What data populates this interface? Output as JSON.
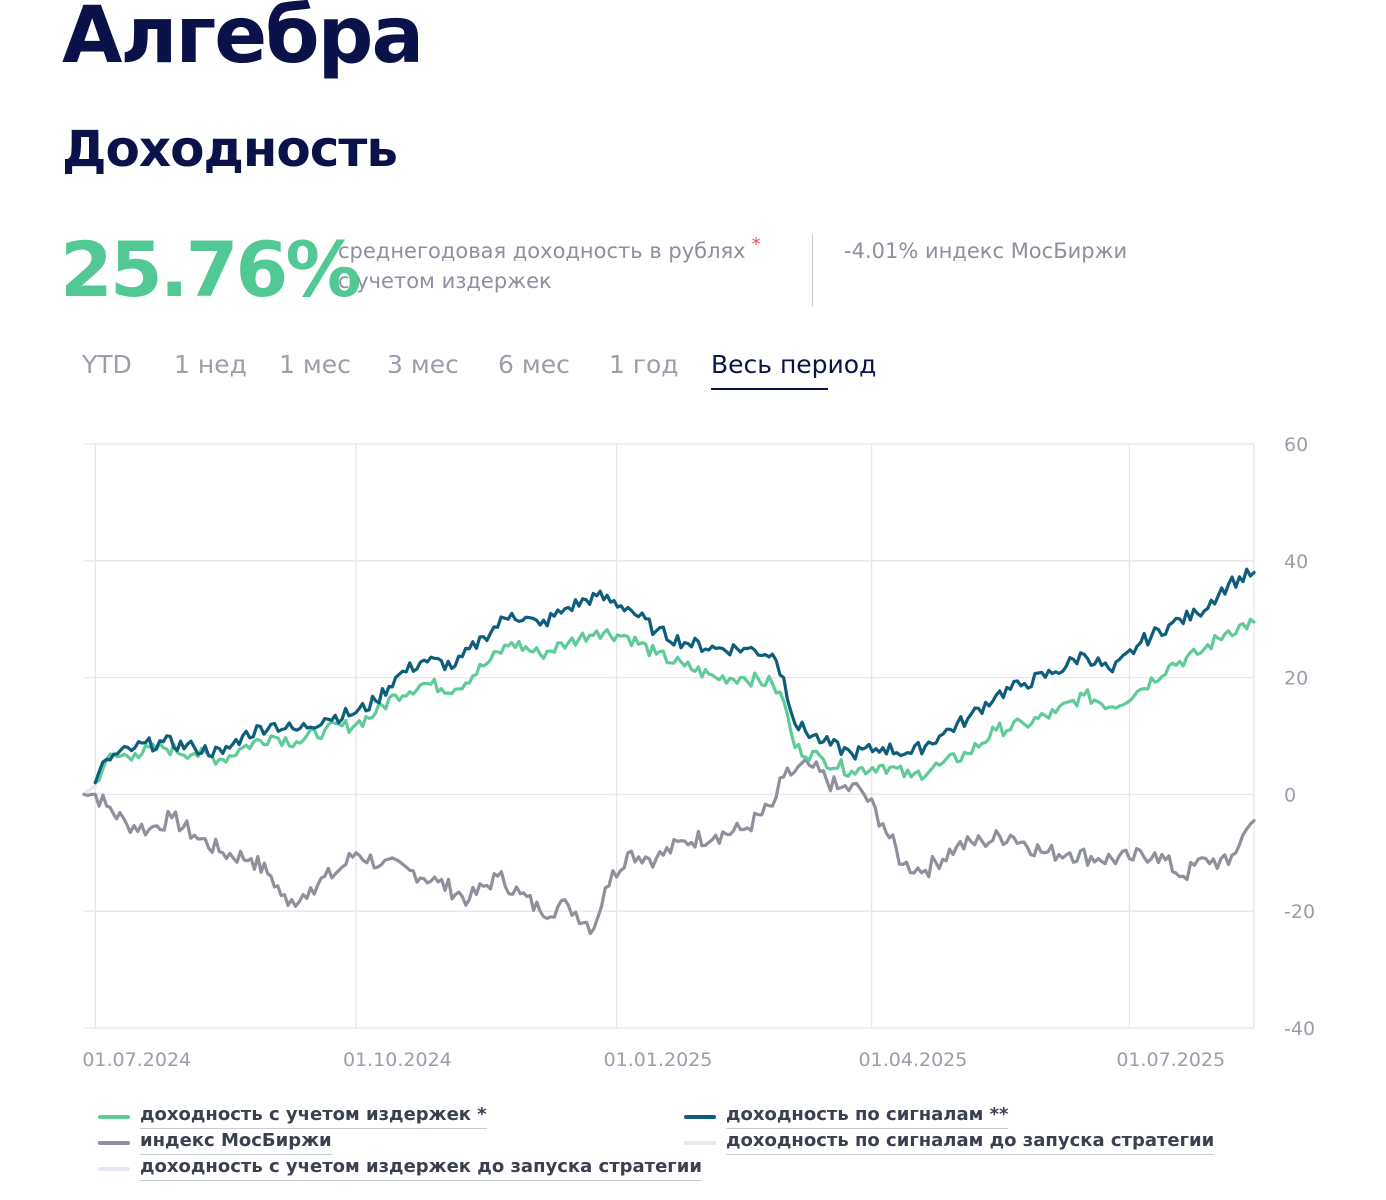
{
  "header": {
    "title": "Алгебра",
    "section_title": "Доходность"
  },
  "summary": {
    "value": "25.76%",
    "caption_line1": "среднегодовая доходность в рублях",
    "caption_star": "*",
    "caption_line2": "с учетом издержек",
    "index_value": "-4.01% индекс МосБиржи"
  },
  "tabs": [
    {
      "label": "YTD"
    },
    {
      "label": "1 нед"
    },
    {
      "label": "1 мес"
    },
    {
      "label": "3 мес"
    },
    {
      "label": "6 мес"
    },
    {
      "label": "1 год"
    },
    {
      "label": "Весь период"
    }
  ],
  "active_tab": "Весь период",
  "legend": [
    {
      "label": "доходность с учетом издержек *",
      "color": "#5fcb97"
    },
    {
      "label": "доходность по сигналам **",
      "color": "#0e5e7b"
    },
    {
      "label": "индекс МосБиржи",
      "color": "#8e919c"
    },
    {
      "label": "доходность по сигналам до запуска стратегии",
      "color": "#e9eaee"
    },
    {
      "label": "доходность с учетом издержек до запуска стратегии",
      "color": "#e6e7f3"
    }
  ],
  "chart_data": {
    "type": "line",
    "x_type": "date",
    "x_range": [
      "2024-06-27",
      "2025-08-14"
    ],
    "x_ticks": [
      {
        "date": "2024-07-01",
        "label": "01.07.2024"
      },
      {
        "date": "2024-10-01",
        "label": "01.10.2024"
      },
      {
        "date": "2025-01-01",
        "label": "01.01.2025"
      },
      {
        "date": "2025-04-01",
        "label": "01.04.2025"
      },
      {
        "date": "2025-07-01",
        "label": "01.07.2025"
      }
    ],
    "y_ticks": [
      60,
      40,
      20,
      0,
      -20,
      -40
    ],
    "ylim": [
      -40,
      60
    ],
    "grid": true,
    "y_axis_position": "right",
    "legend_position": "bottom",
    "series": [
      {
        "name": "доходность с учетом издержек *",
        "color": "#5fcb97",
        "points": [
          [
            "2024-07-01",
            2
          ],
          [
            "2024-07-05",
            6
          ],
          [
            "2024-07-15",
            7
          ],
          [
            "2024-07-25",
            8
          ],
          [
            "2024-08-05",
            7
          ],
          [
            "2024-08-15",
            6
          ],
          [
            "2024-08-22",
            8
          ],
          [
            "2024-09-01",
            10
          ],
          [
            "2024-09-10",
            9
          ],
          [
            "2024-09-20",
            11
          ],
          [
            "2024-10-01",
            12
          ],
          [
            "2024-10-08",
            14
          ],
          [
            "2024-10-15",
            17
          ],
          [
            "2024-10-25",
            19
          ],
          [
            "2024-11-05",
            18
          ],
          [
            "2024-11-15",
            22
          ],
          [
            "2024-11-25",
            26
          ],
          [
            "2024-12-05",
            24
          ],
          [
            "2024-12-15",
            26
          ],
          [
            "2024-12-25",
            28
          ],
          [
            "2025-01-05",
            27
          ],
          [
            "2025-01-15",
            24
          ],
          [
            "2025-01-25",
            22
          ],
          [
            "2025-02-05",
            20
          ],
          [
            "2025-02-15",
            20
          ],
          [
            "2025-02-25",
            19
          ],
          [
            "2025-03-01",
            16
          ],
          [
            "2025-03-05",
            8
          ],
          [
            "2025-03-15",
            6
          ],
          [
            "2025-03-25",
            4
          ],
          [
            "2025-04-05",
            5
          ],
          [
            "2025-04-15",
            3
          ],
          [
            "2025-04-25",
            5
          ],
          [
            "2025-05-05",
            7
          ],
          [
            "2025-05-15",
            11
          ],
          [
            "2025-05-25",
            12
          ],
          [
            "2025-06-05",
            14
          ],
          [
            "2025-06-15",
            17
          ],
          [
            "2025-06-25",
            15
          ],
          [
            "2025-07-05",
            18
          ],
          [
            "2025-07-15",
            22
          ],
          [
            "2025-07-25",
            24
          ],
          [
            "2025-08-05",
            28
          ],
          [
            "2025-08-14",
            29.5
          ]
        ]
      },
      {
        "name": "доходность по сигналам **",
        "color": "#0e5e7b",
        "points": [
          [
            "2024-07-01",
            2
          ],
          [
            "2024-07-05",
            6
          ],
          [
            "2024-07-15",
            8
          ],
          [
            "2024-07-25",
            9
          ],
          [
            "2024-08-05",
            8
          ],
          [
            "2024-08-15",
            7
          ],
          [
            "2024-08-22",
            10
          ],
          [
            "2024-09-01",
            12
          ],
          [
            "2024-09-10",
            11
          ],
          [
            "2024-09-20",
            13
          ],
          [
            "2024-10-01",
            14
          ],
          [
            "2024-10-08",
            16
          ],
          [
            "2024-10-15",
            20
          ],
          [
            "2024-10-25",
            23
          ],
          [
            "2024-11-05",
            22
          ],
          [
            "2024-11-15",
            27
          ],
          [
            "2024-11-25",
            31
          ],
          [
            "2024-12-05",
            29
          ],
          [
            "2024-12-15",
            32
          ],
          [
            "2024-12-25",
            34
          ],
          [
            "2025-01-05",
            32
          ],
          [
            "2025-01-15",
            28
          ],
          [
            "2025-01-25",
            26
          ],
          [
            "2025-02-05",
            25
          ],
          [
            "2025-02-15",
            25
          ],
          [
            "2025-02-25",
            24
          ],
          [
            "2025-03-01",
            20
          ],
          [
            "2025-03-05",
            12
          ],
          [
            "2025-03-15",
            9
          ],
          [
            "2025-03-25",
            7
          ],
          [
            "2025-04-05",
            8
          ],
          [
            "2025-04-15",
            7
          ],
          [
            "2025-04-25",
            10
          ],
          [
            "2025-05-05",
            13
          ],
          [
            "2025-05-15",
            17
          ],
          [
            "2025-05-25",
            19
          ],
          [
            "2025-06-05",
            21
          ],
          [
            "2025-06-15",
            24
          ],
          [
            "2025-06-25",
            21
          ],
          [
            "2025-07-05",
            26
          ],
          [
            "2025-07-15",
            29
          ],
          [
            "2025-07-25",
            31
          ],
          [
            "2025-08-05",
            36
          ],
          [
            "2025-08-14",
            38
          ]
        ]
      },
      {
        "name": "индекс МосБиржи",
        "color": "#8e919c",
        "points": [
          [
            "2024-06-27",
            0
          ],
          [
            "2024-07-01",
            0
          ],
          [
            "2024-07-05",
            -2
          ],
          [
            "2024-07-12",
            -5
          ],
          [
            "2024-07-20",
            -6
          ],
          [
            "2024-07-28",
            -4
          ],
          [
            "2024-08-05",
            -7
          ],
          [
            "2024-08-15",
            -10
          ],
          [
            "2024-08-25",
            -11
          ],
          [
            "2024-09-01",
            -14
          ],
          [
            "2024-09-07",
            -19
          ],
          [
            "2024-09-15",
            -16
          ],
          [
            "2024-09-25",
            -13
          ],
          [
            "2024-10-01",
            -10
          ],
          [
            "2024-10-10",
            -12
          ],
          [
            "2024-10-20",
            -13
          ],
          [
            "2024-10-30",
            -15
          ],
          [
            "2024-11-10",
            -18
          ],
          [
            "2024-11-20",
            -14
          ],
          [
            "2024-11-28",
            -17
          ],
          [
            "2024-12-05",
            -20
          ],
          [
            "2024-12-15",
            -19
          ],
          [
            "2024-12-24",
            -23
          ],
          [
            "2024-12-28",
            -16
          ],
          [
            "2025-01-05",
            -10
          ],
          [
            "2025-01-15",
            -11
          ],
          [
            "2025-01-25",
            -8
          ],
          [
            "2025-02-05",
            -7
          ],
          [
            "2025-02-15",
            -6
          ],
          [
            "2025-02-25",
            -2
          ],
          [
            "2025-03-01",
            3
          ],
          [
            "2025-03-10",
            5
          ],
          [
            "2025-03-20",
            1
          ],
          [
            "2025-03-28",
            1
          ],
          [
            "2025-04-05",
            -5
          ],
          [
            "2025-04-12",
            -12
          ],
          [
            "2025-04-20",
            -13
          ],
          [
            "2025-05-01",
            -9
          ],
          [
            "2025-05-10",
            -8
          ],
          [
            "2025-05-20",
            -7
          ],
          [
            "2025-06-01",
            -10
          ],
          [
            "2025-06-10",
            -10
          ],
          [
            "2025-06-20",
            -11
          ],
          [
            "2025-07-01",
            -11
          ],
          [
            "2025-07-10",
            -10
          ],
          [
            "2025-07-20",
            -14
          ],
          [
            "2025-07-28",
            -11
          ],
          [
            "2025-08-05",
            -12
          ],
          [
            "2025-08-10",
            -7
          ],
          [
            "2025-08-14",
            -4.5
          ]
        ]
      },
      {
        "name": "доходность по сигналам до запуска стратегии",
        "color": "#e9eaee",
        "points": [
          [
            "2024-06-27",
            0
          ],
          [
            "2024-07-01",
            1.5
          ]
        ]
      },
      {
        "name": "доходность с учетом издержек до запуска стратегии",
        "color": "#e6e7f3",
        "points": [
          [
            "2024-06-27",
            0
          ],
          [
            "2024-07-01",
            1.5
          ]
        ]
      }
    ]
  }
}
